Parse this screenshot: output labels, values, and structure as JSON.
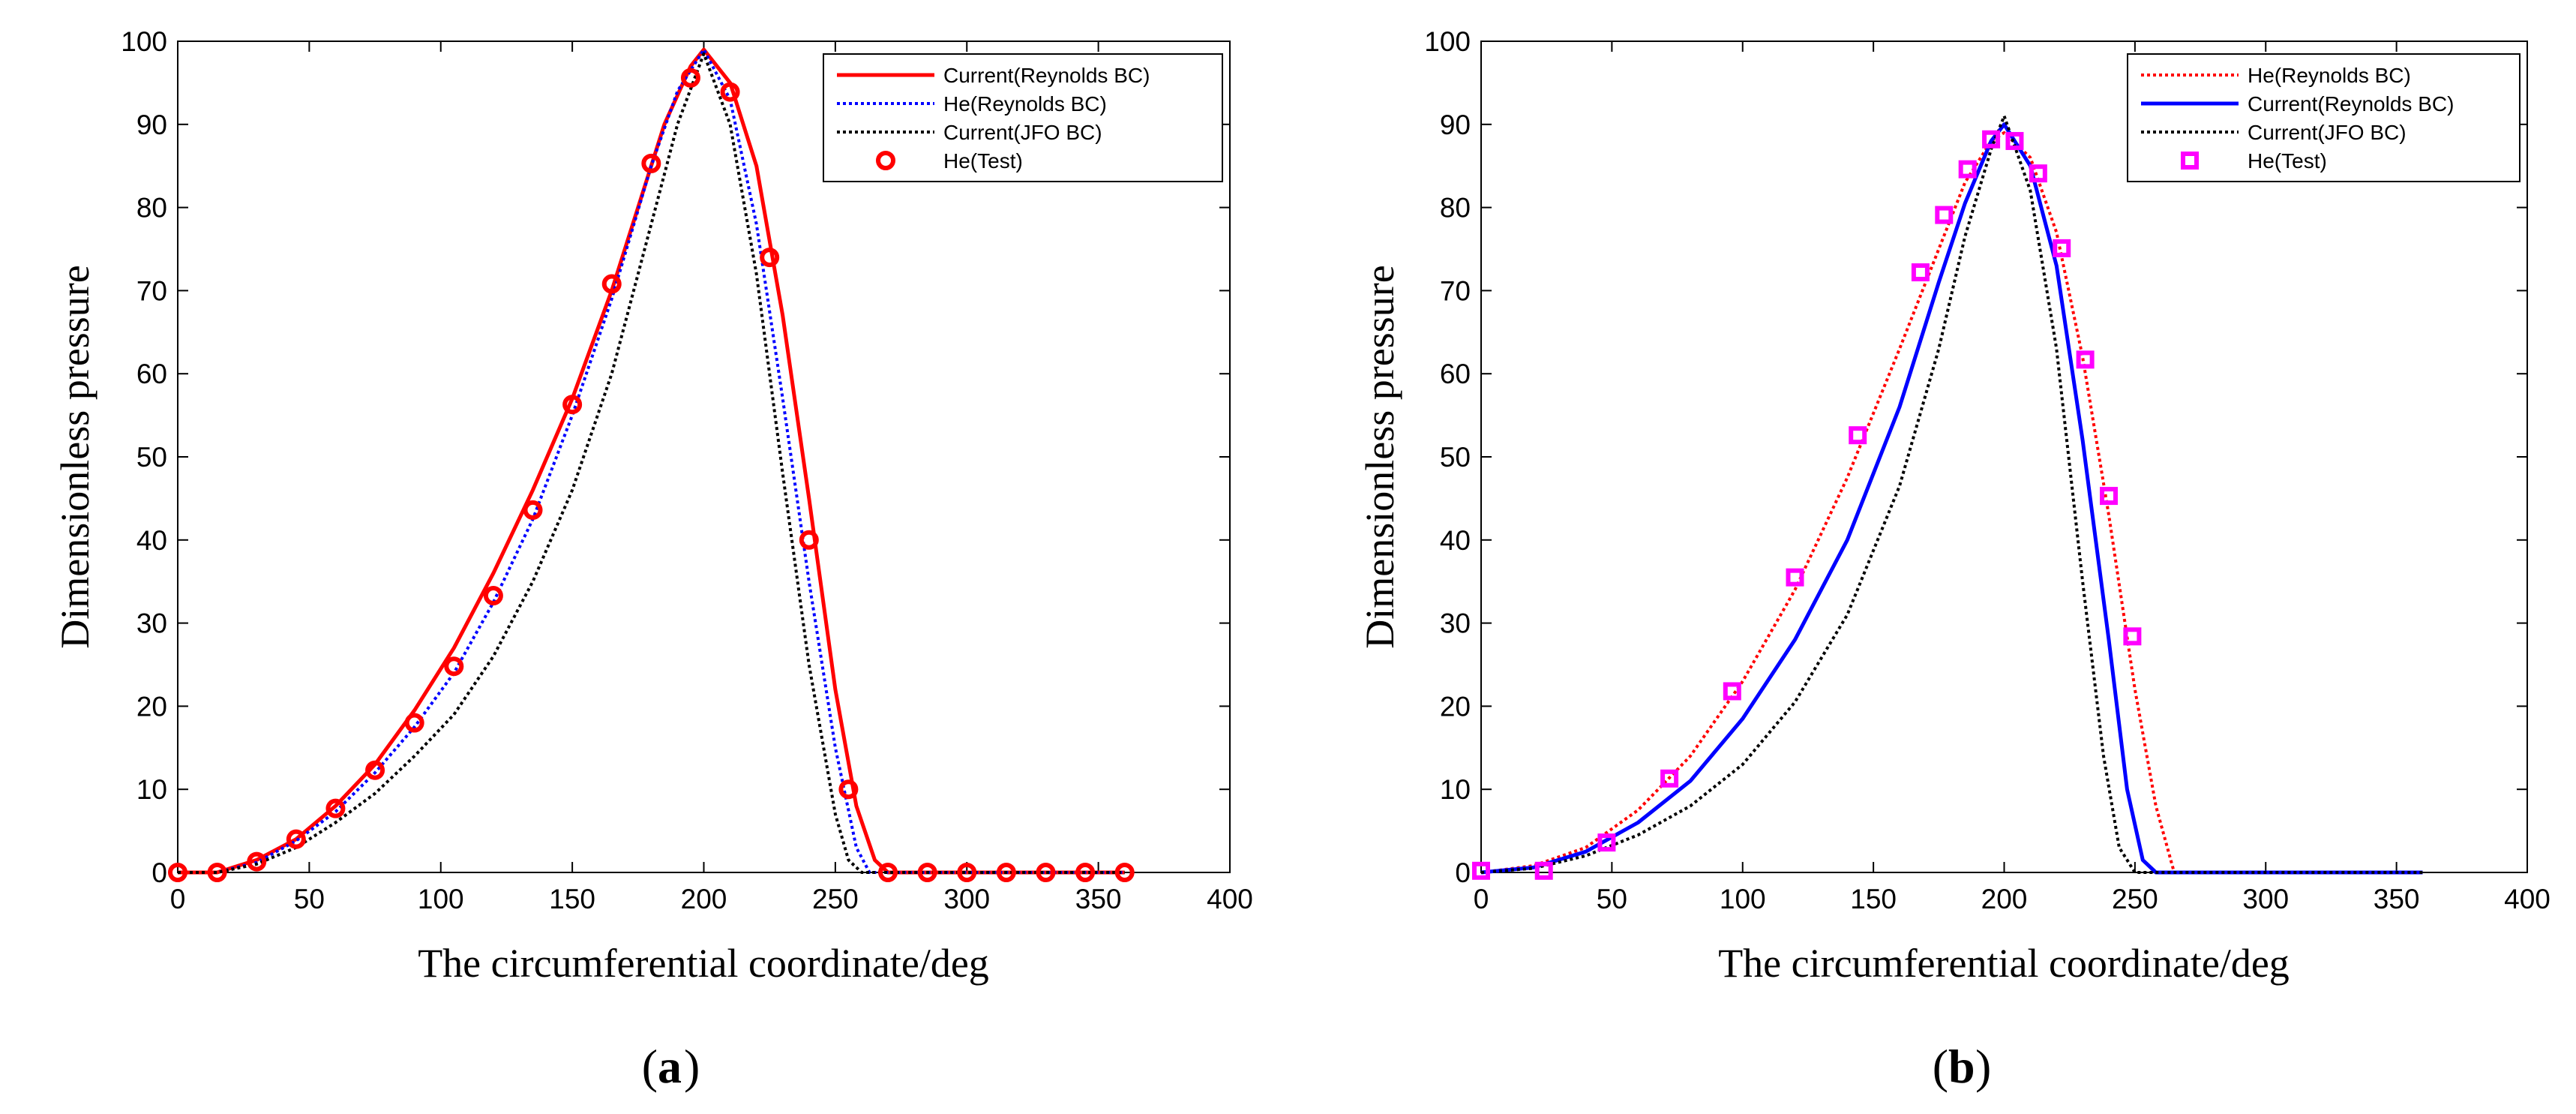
{
  "chart_data": [
    {
      "type": "line",
      "panel_label": "a",
      "xlabel": "The circumferential coordinate/deg",
      "ylabel": "Dimensionless pressure",
      "xlim": [
        0,
        400
      ],
      "ylim": [
        0,
        100
      ],
      "xticks": [
        0,
        50,
        100,
        150,
        200,
        250,
        300,
        350,
        400
      ],
      "yticks": [
        0,
        10,
        20,
        30,
        40,
        50,
        60,
        70,
        80,
        90,
        100
      ],
      "legend_position": "top-right",
      "series": [
        {
          "name": "Current(Reynolds BC)",
          "style": "solid",
          "marker": "none",
          "color": "#ff0000",
          "x": [
            0,
            15,
            30,
            45,
            60,
            75,
            90,
            105,
            120,
            135,
            150,
            165,
            175,
            185,
            195,
            200,
            210,
            220,
            230,
            240,
            250,
            258,
            265,
            270,
            280,
            300,
            320,
            340,
            360
          ],
          "y": [
            0,
            0,
            1.5,
            4,
            8,
            13,
            19.5,
            27,
            36,
            46,
            57,
            70,
            80,
            90,
            97,
            99,
            95,
            85,
            67,
            45,
            22,
            8,
            1.5,
            0,
            0,
            0,
            0,
            0,
            0
          ]
        },
        {
          "name": "He(Reynolds BC)",
          "style": "dotted",
          "marker": "none",
          "color": "#0000ff",
          "x": [
            0,
            15,
            30,
            45,
            60,
            75,
            90,
            105,
            120,
            135,
            150,
            165,
            180,
            190,
            200,
            210,
            220,
            230,
            240,
            250,
            258,
            263,
            270,
            300,
            330,
            360
          ],
          "y": [
            0,
            0,
            1.2,
            3.8,
            7.3,
            12,
            17.5,
            24,
            32.5,
            42.5,
            55,
            69,
            85,
            94,
            99,
            93,
            78,
            57,
            35,
            15,
            3,
            0,
            0,
            0,
            0,
            0
          ]
        },
        {
          "name": "Current(JFO BC)",
          "style": "dotted",
          "marker": "none",
          "color": "#000000",
          "x": [
            0,
            15,
            30,
            45,
            60,
            75,
            90,
            105,
            120,
            135,
            150,
            165,
            180,
            190,
            200,
            210,
            220,
            230,
            240,
            250,
            255,
            260,
            270,
            300,
            330,
            360
          ],
          "y": [
            0,
            0,
            1,
            3,
            6,
            9.5,
            14,
            19,
            26,
            35,
            46,
            60,
            78,
            90,
            98.5,
            90,
            72,
            48,
            25,
            7,
            1.5,
            0,
            0,
            0,
            0,
            0
          ]
        },
        {
          "name": "He(Test)",
          "style": "none",
          "marker": "circle",
          "color": "#ff0000",
          "x": [
            0,
            15,
            30,
            45,
            60,
            75,
            90,
            105,
            120,
            135,
            150,
            165,
            180,
            195,
            210,
            225,
            240,
            255,
            270,
            285,
            300,
            315,
            330,
            345,
            360
          ],
          "y": [
            0,
            0,
            1.3,
            4,
            7.7,
            12.3,
            18,
            24.8,
            33.3,
            43.6,
            56.3,
            70.8,
            85.3,
            95.6,
            93.9,
            74,
            40,
            10,
            0,
            0,
            0,
            0,
            0,
            0,
            0
          ]
        }
      ]
    },
    {
      "type": "line",
      "panel_label": "b",
      "xlabel": "The circumferential coordinate/deg",
      "ylabel": "Dimensionless pressure",
      "xlim": [
        0,
        400
      ],
      "ylim": [
        0,
        100
      ],
      "xticks": [
        0,
        50,
        100,
        150,
        200,
        250,
        300,
        350,
        400
      ],
      "yticks": [
        0,
        10,
        20,
        30,
        40,
        50,
        60,
        70,
        80,
        90,
        100
      ],
      "legend_position": "top-right",
      "series": [
        {
          "name": "He(Reynolds BC)",
          "style": "dotted",
          "marker": "none",
          "color": "#ff0000",
          "x": [
            0,
            20,
            40,
            60,
            80,
            100,
            120,
            140,
            160,
            175,
            185,
            195,
            200,
            210,
            220,
            230,
            240,
            250,
            258,
            265,
            270,
            300,
            330,
            360
          ],
          "y": [
            0,
            0.8,
            3,
            7.5,
            14,
            23,
            34,
            47.5,
            63,
            75,
            83,
            88,
            89,
            86,
            77,
            62,
            43,
            22,
            8,
            0,
            0,
            0,
            0,
            0
          ]
        },
        {
          "name": "Current(Reynolds BC)",
          "style": "solid",
          "marker": "none",
          "color": "#0000ff",
          "x": [
            0,
            20,
            40,
            60,
            80,
            100,
            120,
            140,
            160,
            175,
            185,
            195,
            200,
            210,
            220,
            230,
            240,
            247,
            253,
            258,
            300,
            330,
            360
          ],
          "y": [
            0,
            0.6,
            2.5,
            6,
            11,
            18.5,
            28,
            40,
            56,
            71,
            80.5,
            88,
            90,
            85,
            73,
            52,
            28,
            10,
            1.5,
            0,
            0,
            0,
            0
          ]
        },
        {
          "name": "Current(JFO BC)",
          "style": "dotted",
          "marker": "none",
          "color": "#000000",
          "x": [
            0,
            20,
            40,
            60,
            80,
            100,
            120,
            140,
            160,
            175,
            185,
            195,
            200,
            210,
            220,
            230,
            238,
            244,
            250,
            300,
            360
          ],
          "y": [
            0,
            0.5,
            2,
            4.5,
            8,
            13,
            20.5,
            31,
            46.5,
            63,
            76.5,
            87,
            91,
            82,
            63,
            35,
            14,
            3,
            0,
            0,
            0
          ]
        },
        {
          "name": "He(Test)",
          "style": "none",
          "marker": "square",
          "color": "#ff00ff",
          "x": [
            0,
            24,
            48,
            72,
            96,
            120,
            144,
            168,
            177,
            186,
            195,
            204,
            213,
            222,
            231,
            240,
            249
          ],
          "y": [
            0.2,
            0.2,
            3.6,
            11.3,
            21.8,
            35.5,
            52.6,
            72.2,
            79.1,
            84.6,
            88.2,
            88,
            84.1,
            75.1,
            61.7,
            45.3,
            28.4
          ]
        }
      ]
    }
  ]
}
